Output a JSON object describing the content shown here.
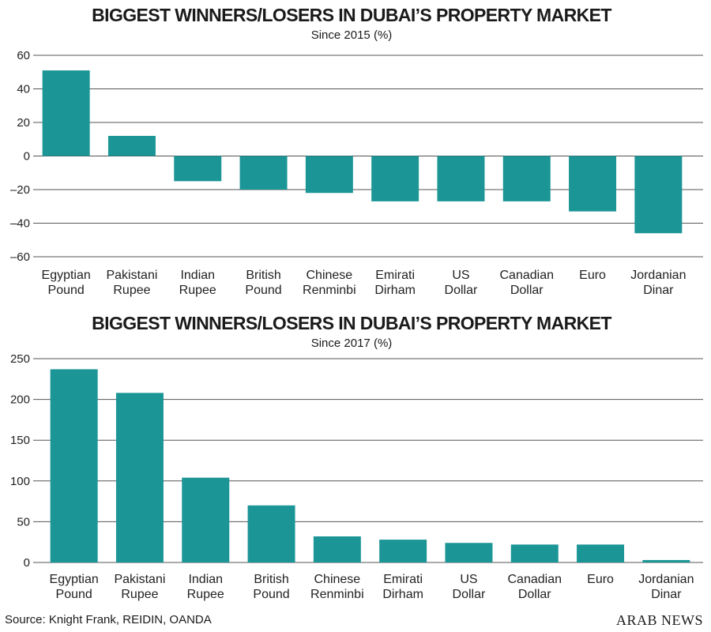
{
  "chart_data": [
    {
      "type": "bar",
      "title": "BIGGEST WINNERS/LOSERS IN DUBAI’S PROPERTY MARKET",
      "subtitle": "Since 2015 (%)",
      "categories": [
        [
          "Egyptian",
          "Pound"
        ],
        [
          "Pakistani",
          "Rupee"
        ],
        [
          "Indian",
          "Rupee"
        ],
        [
          "British",
          "Pound"
        ],
        [
          "Chinese",
          "Renminbi"
        ],
        [
          "Emirati",
          "Dirham"
        ],
        [
          "US",
          "Dollar"
        ],
        [
          "Canadian",
          "Dollar"
        ],
        [
          "Euro"
        ],
        [
          "Jordanian",
          "Dinar"
        ]
      ],
      "values": [
        51,
        12,
        -15,
        -20,
        -22,
        -27,
        -27,
        -27,
        -33,
        -46
      ],
      "ylim": [
        -60,
        60
      ],
      "yticks": [
        60,
        40,
        20,
        0,
        -20,
        -40,
        -60
      ],
      "ytick_labels": [
        "60",
        "40",
        "20",
        "0",
        "–20",
        "–40",
        "–60"
      ],
      "grid": true
    },
    {
      "type": "bar",
      "title": "BIGGEST WINNERS/LOSERS IN DUBAI’S PROPERTY MARKET",
      "subtitle": "Since 2017 (%)",
      "categories": [
        [
          "Egyptian",
          "Pound"
        ],
        [
          "Pakistani",
          "Rupee"
        ],
        [
          "Indian",
          "Rupee"
        ],
        [
          "British",
          "Pound"
        ],
        [
          "Chinese",
          "Renminbi"
        ],
        [
          "Emirati",
          "Dirham"
        ],
        [
          "US",
          "Dollar"
        ],
        [
          "Canadian",
          "Dollar"
        ],
        [
          "Euro"
        ],
        [
          "Jordanian",
          "Dinar"
        ]
      ],
      "values": [
        237,
        208,
        104,
        70,
        32,
        28,
        24,
        22,
        22,
        3
      ],
      "ylim": [
        0,
        250
      ],
      "yticks": [
        250,
        200,
        150,
        100,
        50,
        0
      ],
      "ytick_labels": [
        "250",
        "200",
        "150",
        "100",
        "50",
        "0"
      ],
      "grid": true
    }
  ],
  "footer": {
    "source": "Source: Knight Frank, REIDIN, OANDA",
    "brand": "ARAB NEWS"
  },
  "colors": {
    "bar": "#1b9596",
    "grid": "#555555"
  }
}
